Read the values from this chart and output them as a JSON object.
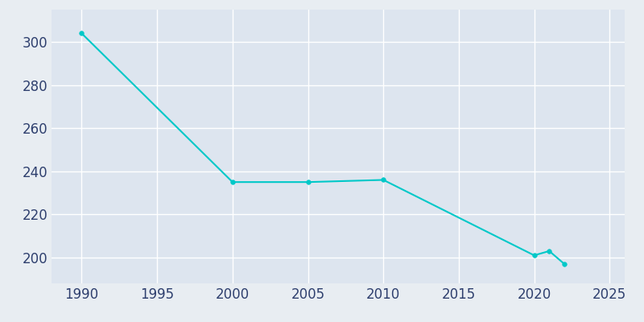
{
  "years": [
    1990,
    2000,
    2005,
    2010,
    2020,
    2021,
    2022
  ],
  "population": [
    304,
    235,
    235,
    236,
    201,
    203,
    197
  ],
  "line_color": "#00c8c8",
  "marker_color": "#00c8c8",
  "bg_color": "#e8edf2",
  "plot_bg_color": "#dde5ef",
  "grid_color": "#ffffff",
  "tick_color": "#2e3f6e",
  "xlim": [
    1988,
    2026
  ],
  "ylim": [
    188,
    315
  ],
  "xticks": [
    1990,
    1995,
    2000,
    2005,
    2010,
    2015,
    2020,
    2025
  ],
  "yticks": [
    200,
    220,
    240,
    260,
    280,
    300
  ],
  "line_width": 1.5,
  "marker_size": 4,
  "tick_labelsize": 12
}
